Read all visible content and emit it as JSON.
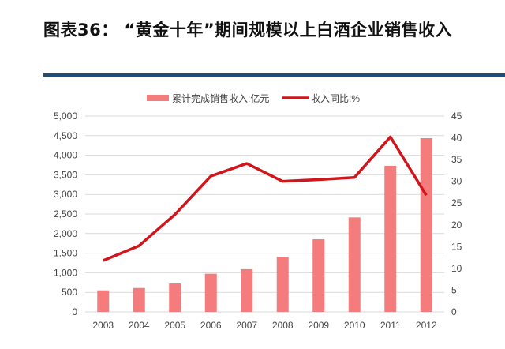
{
  "title": "图表36：  “黄金十年”期间规模以上白酒企业销售收入",
  "chart_data": {
    "type": "bar+line",
    "categories": [
      "2003",
      "2004",
      "2005",
      "2006",
      "2007",
      "2008",
      "2009",
      "2010",
      "2011",
      "2012"
    ],
    "series": [
      {
        "name": "累计完成销售收入:亿元",
        "type": "bar",
        "axis": "left",
        "color": "#f47c7c",
        "values": [
          550,
          610,
          725,
          975,
          1090,
          1405,
          1855,
          2413,
          3730,
          4436
        ]
      },
      {
        "name": "收入同比:%",
        "type": "line",
        "axis": "right",
        "color": "#d0161b",
        "values": [
          11.8,
          15.2,
          22.4,
          31.2,
          34.1,
          30.0,
          30.4,
          30.9,
          40.2,
          26.8
        ]
      }
    ],
    "left_axis": {
      "ylim": [
        0,
        5000
      ],
      "ticks": [
        "0",
        "500",
        "1,000",
        "1,500",
        "2,000",
        "2,500",
        "3,000",
        "3,500",
        "4,000",
        "4,500",
        "5,000"
      ]
    },
    "right_axis": {
      "ylim": [
        0,
        45
      ],
      "ticks": [
        "0",
        "5",
        "10",
        "15",
        "20",
        "25",
        "30",
        "35",
        "40",
        "45"
      ]
    },
    "legend": "top",
    "grid": true
  }
}
